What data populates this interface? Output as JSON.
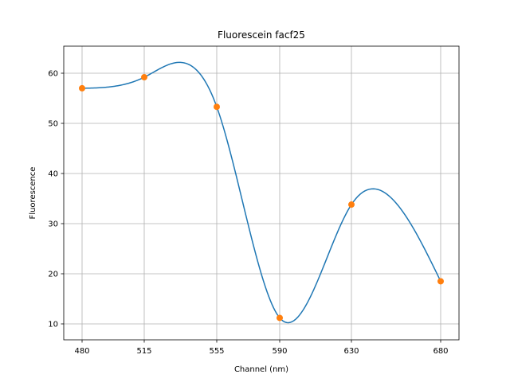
{
  "chart_data": {
    "type": "line",
    "title": "Fluorescein facf25",
    "xlabel": "Channel (nm)",
    "ylabel": "Fluorescence",
    "x_ticks": [
      "480",
      "515",
      "555",
      "590",
      "630",
      "680"
    ],
    "y_ticks": [
      "10",
      "20",
      "30",
      "40",
      "50",
      "60"
    ],
    "ylim": [
      6.7,
      65.5
    ],
    "grid": true,
    "series": [
      {
        "kind": "points",
        "color": "#ff7f0e",
        "points": [
          {
            "x": 480,
            "y": 57.0
          },
          {
            "x": 515,
            "y": 59.2
          },
          {
            "x": 555,
            "y": 53.3
          },
          {
            "x": 590,
            "y": 11.2
          },
          {
            "x": 630,
            "y": 33.8
          },
          {
            "x": 680,
            "y": 18.5
          }
        ]
      },
      {
        "kind": "smooth-curve",
        "color": "#1f77b4",
        "curve_through_points": true
      }
    ]
  }
}
